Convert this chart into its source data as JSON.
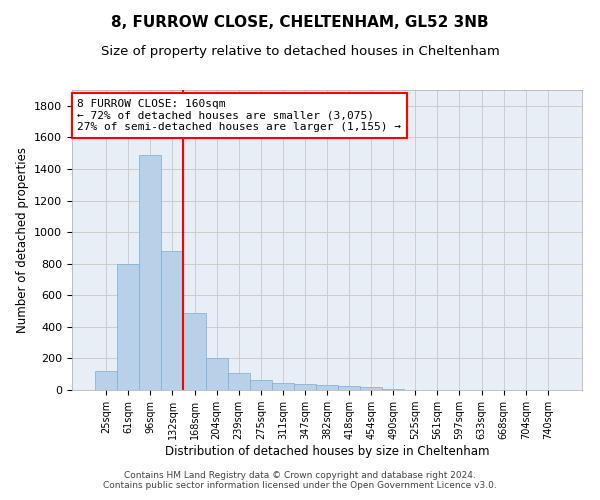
{
  "title1": "8, FURROW CLOSE, CHELTENHAM, GL52 3NB",
  "title2": "Size of property relative to detached houses in Cheltenham",
  "xlabel": "Distribution of detached houses by size in Cheltenham",
  "ylabel": "Number of detached properties",
  "footer": "Contains HM Land Registry data © Crown copyright and database right 2024.\nContains public sector information licensed under the Open Government Licence v3.0.",
  "categories": [
    "25sqm",
    "61sqm",
    "96sqm",
    "132sqm",
    "168sqm",
    "204sqm",
    "239sqm",
    "275sqm",
    "311sqm",
    "347sqm",
    "382sqm",
    "418sqm",
    "454sqm",
    "490sqm",
    "525sqm",
    "561sqm",
    "597sqm",
    "633sqm",
    "668sqm",
    "704sqm",
    "740sqm"
  ],
  "values": [
    120,
    800,
    1490,
    880,
    490,
    205,
    105,
    65,
    45,
    35,
    30,
    25,
    20,
    5,
    0,
    0,
    0,
    0,
    0,
    0,
    0
  ],
  "bar_color": "#b8d0e8",
  "bar_edgecolor": "#7aadd4",
  "vline_x": 3.5,
  "vline_color": "red",
  "ylim": [
    0,
    1900
  ],
  "yticks": [
    0,
    200,
    400,
    600,
    800,
    1000,
    1200,
    1400,
    1600,
    1800
  ],
  "annotation_text": "8 FURROW CLOSE: 160sqm\n← 72% of detached houses are smaller (3,075)\n27% of semi-detached houses are larger (1,155) →",
  "annotation_box_color": "white",
  "annotation_box_edgecolor": "red",
  "annotation_fontsize": 8,
  "title1_fontsize": 11,
  "title2_fontsize": 9.5,
  "xlabel_fontsize": 8.5,
  "ylabel_fontsize": 8.5,
  "footer_fontsize": 6.5,
  "grid_color": "#cccccc",
  "bg_color": "#e8eef5"
}
